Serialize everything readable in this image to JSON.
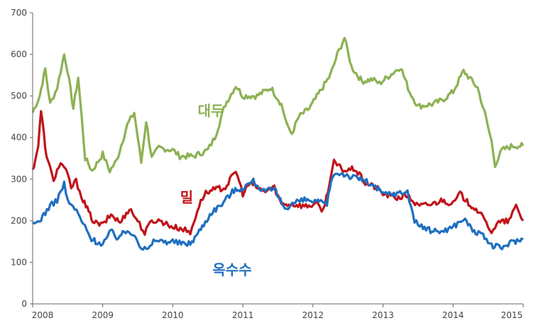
{
  "chart_data": {
    "type": "line",
    "title": "",
    "xlabel": "",
    "ylabel": "",
    "xlim": [
      2008,
      2015
    ],
    "ylim": [
      0,
      700
    ],
    "x_ticks": [
      "2008",
      "2009",
      "2010",
      "2011",
      "2012",
      "2013",
      "2014",
      "2015"
    ],
    "y_ticks": [
      "0",
      "100",
      "200",
      "300",
      "400",
      "500",
      "600",
      "700"
    ],
    "grid": false,
    "series": [
      {
        "name": "대두",
        "color": "#8db153",
        "points": [
          [
            2008.0,
            460
          ],
          [
            2008.1,
            500
          ],
          [
            2008.18,
            565
          ],
          [
            2008.25,
            480
          ],
          [
            2008.35,
            520
          ],
          [
            2008.45,
            600
          ],
          [
            2008.5,
            560
          ],
          [
            2008.58,
            470
          ],
          [
            2008.65,
            545
          ],
          [
            2008.75,
            350
          ],
          [
            2008.85,
            320
          ],
          [
            2009.0,
            360
          ],
          [
            2009.1,
            320
          ],
          [
            2009.2,
            345
          ],
          [
            2009.35,
            430
          ],
          [
            2009.45,
            460
          ],
          [
            2009.55,
            340
          ],
          [
            2009.62,
            440
          ],
          [
            2009.7,
            350
          ],
          [
            2009.8,
            375
          ],
          [
            2010.0,
            370
          ],
          [
            2010.1,
            355
          ],
          [
            2010.3,
            355
          ],
          [
            2010.5,
            370
          ],
          [
            2010.6,
            400
          ],
          [
            2010.75,
            480
          ],
          [
            2010.9,
            525
          ],
          [
            2011.0,
            500
          ],
          [
            2011.2,
            500
          ],
          [
            2011.4,
            520
          ],
          [
            2011.55,
            480
          ],
          [
            2011.65,
            420
          ],
          [
            2011.7,
            410
          ],
          [
            2011.8,
            450
          ],
          [
            2011.95,
            470
          ],
          [
            2012.1,
            510
          ],
          [
            2012.25,
            550
          ],
          [
            2012.35,
            600
          ],
          [
            2012.45,
            640
          ],
          [
            2012.55,
            570
          ],
          [
            2012.7,
            535
          ],
          [
            2012.85,
            540
          ],
          [
            2012.95,
            530
          ],
          [
            2013.1,
            550
          ],
          [
            2013.25,
            570
          ],
          [
            2013.38,
            510
          ],
          [
            2013.5,
            475
          ],
          [
            2013.7,
            480
          ],
          [
            2013.85,
            490
          ],
          [
            2014.0,
            510
          ],
          [
            2014.15,
            560
          ],
          [
            2014.35,
            520
          ],
          [
            2014.45,
            460
          ],
          [
            2014.55,
            390
          ],
          [
            2014.6,
            335
          ],
          [
            2014.7,
            370
          ],
          [
            2014.85,
            380
          ],
          [
            2015.0,
            380
          ]
        ]
      },
      {
        "name": "밀",
        "color": "#c0141a",
        "points": [
          [
            2008.0,
            320
          ],
          [
            2008.08,
            380
          ],
          [
            2008.12,
            465
          ],
          [
            2008.2,
            350
          ],
          [
            2008.3,
            300
          ],
          [
            2008.4,
            340
          ],
          [
            2008.5,
            310
          ],
          [
            2008.55,
            280
          ],
          [
            2008.62,
            295
          ],
          [
            2008.72,
            250
          ],
          [
            2008.8,
            220
          ],
          [
            2008.88,
            195
          ],
          [
            2009.0,
            190
          ],
          [
            2009.12,
            215
          ],
          [
            2009.25,
            195
          ],
          [
            2009.38,
            230
          ],
          [
            2009.5,
            200
          ],
          [
            2009.6,
            170
          ],
          [
            2009.7,
            200
          ],
          [
            2009.82,
            200
          ],
          [
            2010.0,
            185
          ],
          [
            2010.15,
            180
          ],
          [
            2010.25,
            170
          ],
          [
            2010.35,
            225
          ],
          [
            2010.45,
            265
          ],
          [
            2010.6,
            275
          ],
          [
            2010.75,
            280
          ],
          [
            2010.9,
            320
          ],
          [
            2011.0,
            265
          ],
          [
            2011.1,
            290
          ],
          [
            2011.3,
            270
          ],
          [
            2011.45,
            280
          ],
          [
            2011.55,
            240
          ],
          [
            2011.7,
            240
          ],
          [
            2011.9,
            235
          ],
          [
            2012.05,
            240
          ],
          [
            2012.15,
            225
          ],
          [
            2012.3,
            340
          ],
          [
            2012.45,
            320
          ],
          [
            2012.6,
            325
          ],
          [
            2012.75,
            290
          ],
          [
            2012.9,
            280
          ],
          [
            2013.0,
            265
          ],
          [
            2013.2,
            255
          ],
          [
            2013.35,
            260
          ],
          [
            2013.5,
            235
          ],
          [
            2013.7,
            240
          ],
          [
            2013.85,
            250
          ],
          [
            2014.0,
            240
          ],
          [
            2014.1,
            265
          ],
          [
            2014.2,
            245
          ],
          [
            2014.35,
            225
          ],
          [
            2014.45,
            200
          ],
          [
            2014.55,
            175
          ],
          [
            2014.65,
            195
          ],
          [
            2014.8,
            200
          ],
          [
            2014.9,
            235
          ],
          [
            2015.0,
            200
          ]
        ]
      },
      {
        "name": "옥수수",
        "color": "#1f6fbf",
        "points": [
          [
            2008.0,
            190
          ],
          [
            2008.1,
            200
          ],
          [
            2008.18,
            220
          ],
          [
            2008.25,
            235
          ],
          [
            2008.35,
            250
          ],
          [
            2008.45,
            290
          ],
          [
            2008.5,
            245
          ],
          [
            2008.6,
            230
          ],
          [
            2008.7,
            200
          ],
          [
            2008.82,
            160
          ],
          [
            2008.9,
            150
          ],
          [
            2009.0,
            145
          ],
          [
            2009.12,
            175
          ],
          [
            2009.2,
            160
          ],
          [
            2009.35,
            175
          ],
          [
            2009.45,
            170
          ],
          [
            2009.55,
            135
          ],
          [
            2009.65,
            130
          ],
          [
            2009.75,
            155
          ],
          [
            2009.85,
            150
          ],
          [
            2010.0,
            150
          ],
          [
            2010.12,
            145
          ],
          [
            2010.25,
            145
          ],
          [
            2010.4,
            180
          ],
          [
            2010.55,
            220
          ],
          [
            2010.7,
            240
          ],
          [
            2010.85,
            270
          ],
          [
            2011.0,
            280
          ],
          [
            2011.15,
            295
          ],
          [
            2011.3,
            270
          ],
          [
            2011.45,
            275
          ],
          [
            2011.6,
            230
          ],
          [
            2011.75,
            245
          ],
          [
            2011.9,
            250
          ],
          [
            2012.05,
            245
          ],
          [
            2012.2,
            240
          ],
          [
            2012.28,
            310
          ],
          [
            2012.4,
            315
          ],
          [
            2012.55,
            305
          ],
          [
            2012.7,
            300
          ],
          [
            2012.85,
            285
          ],
          [
            2013.0,
            265
          ],
          [
            2013.2,
            265
          ],
          [
            2013.35,
            270
          ],
          [
            2013.45,
            200
          ],
          [
            2013.55,
            185
          ],
          [
            2013.7,
            175
          ],
          [
            2013.85,
            175
          ],
          [
            2014.0,
            185
          ],
          [
            2014.15,
            205
          ],
          [
            2014.3,
            175
          ],
          [
            2014.45,
            160
          ],
          [
            2014.55,
            140
          ],
          [
            2014.7,
            135
          ],
          [
            2014.85,
            150
          ],
          [
            2015.0,
            155
          ]
        ]
      }
    ]
  }
}
